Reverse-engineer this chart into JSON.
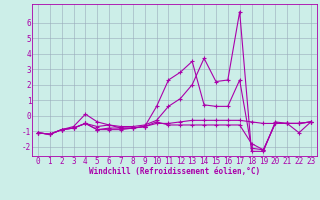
{
  "x": [
    0,
    1,
    2,
    3,
    4,
    5,
    6,
    7,
    8,
    9,
    10,
    11,
    12,
    13,
    14,
    15,
    16,
    17,
    18,
    19,
    20,
    21,
    22,
    23
  ],
  "series": [
    [
      -1.1,
      -1.2,
      -0.9,
      -0.7,
      0.1,
      -0.4,
      -0.6,
      -0.8,
      -0.8,
      -0.7,
      -0.5,
      -0.5,
      -0.4,
      -0.3,
      -0.3,
      -0.3,
      -0.3,
      -0.3,
      -0.4,
      -0.5,
      -0.5,
      -0.5,
      -0.5,
      -0.4
    ],
    [
      -1.1,
      -1.2,
      -0.9,
      -0.8,
      -0.5,
      -0.7,
      -0.6,
      -0.7,
      -0.7,
      -0.6,
      -0.3,
      0.6,
      1.1,
      2.0,
      3.7,
      2.2,
      2.3,
      6.7,
      -2.3,
      -2.3,
      -0.4,
      -0.5,
      -1.1,
      -0.4
    ],
    [
      -1.1,
      -1.2,
      -0.9,
      -0.8,
      -0.5,
      -0.9,
      -0.8,
      -0.8,
      -0.8,
      -0.7,
      0.6,
      2.3,
      2.8,
      3.5,
      0.7,
      0.6,
      0.6,
      2.3,
      -2.1,
      -2.2,
      -0.5,
      -0.5,
      -0.5,
      -0.4
    ],
    [
      -1.1,
      -1.2,
      -0.9,
      -0.8,
      -0.5,
      -0.9,
      -0.9,
      -0.9,
      -0.8,
      -0.7,
      -0.4,
      -0.6,
      -0.6,
      -0.6,
      -0.6,
      -0.6,
      -0.6,
      -0.6,
      -1.8,
      -2.2,
      -0.5,
      -0.5,
      -0.5,
      -0.4
    ]
  ],
  "bg_color": "#cceee8",
  "line_color": "#aa00aa",
  "grid_color": "#99aabb",
  "xlabel": "Windchill (Refroidissement éolien,°C)",
  "ylabel_ticks": [
    -2,
    -1,
    0,
    1,
    2,
    3,
    4,
    5,
    6
  ],
  "xlim": [
    -0.5,
    23.5
  ],
  "ylim": [
    -2.6,
    7.2
  ],
  "figsize": [
    3.2,
    2.0
  ],
  "dpi": 100,
  "tick_fontsize": 5.5,
  "label_fontsize": 5.5
}
